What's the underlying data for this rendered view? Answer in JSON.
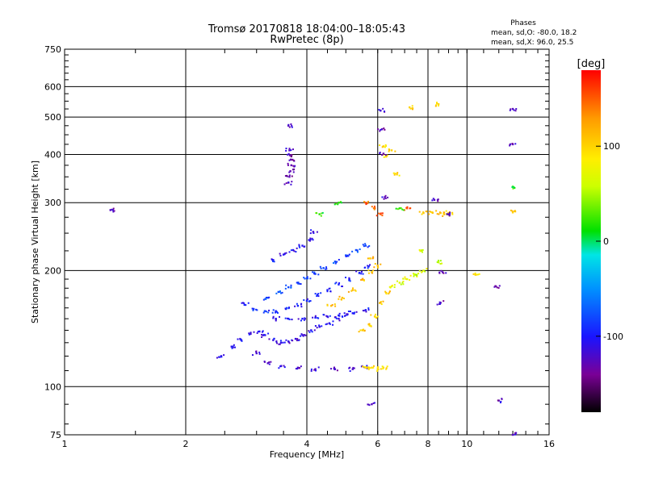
{
  "header": {
    "title_line1": "Tromsø 20170818 18:04:00–18:05:43",
    "title_line2": "RwPretec (8p)"
  },
  "stats": {
    "title": "Phases",
    "line1": "mean, sd,O: -80.0, 18.2",
    "line2": "mean, sd,X:  96.0, 25.5"
  },
  "colorbar": {
    "label": "[deg]",
    "ticks": [
      {
        "value": 100,
        "label": "100"
      },
      {
        "value": 0,
        "label": "0"
      },
      {
        "value": -100,
        "label": "-100"
      }
    ],
    "range": [
      -180,
      180
    ]
  },
  "chart_data": {
    "type": "scatter",
    "title": "Tromsø 20170818 18:04:00–18:05:43 RwPretec (8p)",
    "xlabel": "Frequency [MHz]",
    "ylabel": "Stationary phase Virtual Height [km]",
    "xscale": "log",
    "yscale": "log",
    "xlim": [
      1,
      16
    ],
    "ylim": [
      75,
      750
    ],
    "xticks": [
      1,
      2,
      4,
      6,
      8,
      10,
      16
    ],
    "xtick_labels": [
      "1",
      "2",
      "4",
      "6",
      "8",
      "10",
      "16"
    ],
    "yticks": [
      75,
      100,
      200,
      300,
      400,
      500,
      600,
      750
    ],
    "ytick_labels": [
      "75",
      "100",
      "200",
      "300",
      "400",
      "500",
      "600",
      "750"
    ],
    "grid": true,
    "color_by": "phase [deg]",
    "groups": [
      {
        "points": [
          [
            2.45,
            120
          ],
          [
            2.6,
            127
          ],
          [
            2.75,
            132
          ],
          [
            2.9,
            137
          ],
          [
            3.05,
            139
          ],
          [
            3.15,
            136
          ],
          [
            3.3,
            132
          ],
          [
            3.45,
            130
          ],
          [
            3.6,
            131
          ],
          [
            3.75,
            133
          ],
          [
            3.9,
            136
          ],
          [
            4.1,
            140
          ],
          [
            4.3,
            143
          ],
          [
            4.55,
            146
          ],
          [
            4.8,
            150
          ],
          [
            5.05,
            154
          ]
        ],
        "phase": -110
      },
      {
        "points": [
          [
            2.8,
            163
          ],
          [
            2.95,
            159
          ],
          [
            3.15,
            157
          ],
          [
            3.35,
            157
          ],
          [
            3.55,
            159
          ],
          [
            3.8,
            162
          ],
          [
            4.0,
            167
          ],
          [
            4.25,
            173
          ],
          [
            4.5,
            178
          ],
          [
            4.8,
            184
          ],
          [
            5.1,
            190
          ],
          [
            5.4,
            197
          ],
          [
            5.7,
            205
          ]
        ],
        "phase": -95
      },
      {
        "points": [
          [
            3.2,
            170
          ],
          [
            3.4,
            176
          ],
          [
            3.6,
            181
          ],
          [
            3.8,
            186
          ],
          [
            4.0,
            191
          ],
          [
            4.2,
            196
          ],
          [
            4.4,
            203
          ],
          [
            4.7,
            211
          ],
          [
            5.0,
            219
          ],
          [
            5.3,
            226
          ],
          [
            5.6,
            232
          ]
        ],
        "phase": -80
      },
      {
        "points": [
          [
            3.3,
            213
          ],
          [
            3.5,
            220
          ],
          [
            3.7,
            226
          ],
          [
            3.9,
            232
          ],
          [
            4.05,
            240
          ],
          [
            4.15,
            252
          ]
        ],
        "phase": -105
      },
      {
        "points": [
          [
            3.0,
            122
          ],
          [
            3.2,
            115
          ],
          [
            3.45,
            113
          ],
          [
            3.8,
            112
          ],
          [
            4.2,
            111
          ],
          [
            4.7,
            111
          ],
          [
            5.2,
            111
          ],
          [
            5.6,
            112
          ]
        ],
        "phase": -120
      },
      {
        "points": [
          [
            3.35,
            150
          ],
          [
            3.6,
            150
          ],
          [
            3.9,
            150
          ],
          [
            4.2,
            151
          ],
          [
            4.5,
            152
          ],
          [
            4.8,
            153
          ],
          [
            5.2,
            155
          ],
          [
            5.6,
            158
          ]
        ],
        "phase": -100
      },
      {
        "points": [
          [
            3.6,
            338
          ],
          [
            3.62,
            350
          ],
          [
            3.64,
            362
          ],
          [
            3.66,
            375
          ],
          [
            3.65,
            388
          ],
          [
            3.63,
            398
          ]
        ],
        "phase": -130
      },
      {
        "points": [
          [
            4.6,
            162
          ],
          [
            4.9,
            170
          ],
          [
            5.2,
            178
          ],
          [
            5.5,
            190
          ],
          [
            5.8,
            198
          ],
          [
            6.0,
            206
          ],
          [
            5.75,
            215
          ]
        ],
        "phase": 110
      },
      {
        "points": [
          [
            5.6,
            112
          ],
          [
            5.8,
            112
          ],
          [
            6.0,
            111
          ],
          [
            6.2,
            112
          ]
        ],
        "phase": 95
      },
      {
        "points": [
          [
            5.5,
            140
          ],
          [
            5.7,
            145
          ],
          [
            5.9,
            152
          ],
          [
            6.1,
            165
          ],
          [
            6.3,
            175
          ]
        ],
        "phase": 105
      },
      {
        "points": [
          [
            6.5,
            182
          ],
          [
            6.8,
            186
          ],
          [
            7.1,
            190
          ],
          [
            7.4,
            195
          ],
          [
            7.8,
            200
          ]
        ],
        "phase": 70
      },
      {
        "points": [
          [
            7.8,
            282
          ],
          [
            8.2,
            283
          ],
          [
            8.6,
            282
          ],
          [
            8.9,
            280
          ],
          [
            9.0,
            282
          ]
        ],
        "phase": 105
      },
      {
        "points": [
          [
            6.2,
            420
          ],
          [
            6.3,
            395
          ],
          [
            6.5,
            410
          ],
          [
            6.7,
            355
          ],
          [
            7.2,
            530
          ],
          [
            8.5,
            540
          ],
          [
            10.5,
            195
          ],
          [
            13.0,
            283
          ]
        ],
        "phase": 100
      },
      {
        "points": [
          [
            6.1,
            520
          ],
          [
            6.15,
            465
          ],
          [
            6.2,
            402
          ],
          [
            6.25,
            310
          ],
          [
            8.3,
            305
          ],
          [
            9.0,
            280
          ],
          [
            13.0,
            525
          ],
          [
            13.0,
            425
          ],
          [
            1.3,
            287
          ],
          [
            3.6,
            475
          ],
          [
            3.62,
            410
          ],
          [
            5.8,
            90
          ],
          [
            12.0,
            92
          ],
          [
            13.0,
            75
          ],
          [
            11.8,
            182
          ],
          [
            8.7,
            198
          ],
          [
            8.6,
            165
          ]
        ],
        "phase": -125
      },
      {
        "points": [
          [
            5.6,
            300
          ],
          [
            5.9,
            290
          ],
          [
            6.1,
            280
          ],
          [
            7.1,
            290
          ]
        ],
        "phase": 150
      },
      {
        "points": [
          [
            13.0,
            330
          ],
          [
            6.8,
            290
          ],
          [
            4.3,
            280
          ],
          [
            4.8,
            300
          ]
        ],
        "phase": 20
      },
      {
        "points": [
          [
            7.5,
            195
          ],
          [
            8.5,
            210
          ],
          [
            7.7,
            225
          ]
        ],
        "phase": 60
      }
    ]
  }
}
